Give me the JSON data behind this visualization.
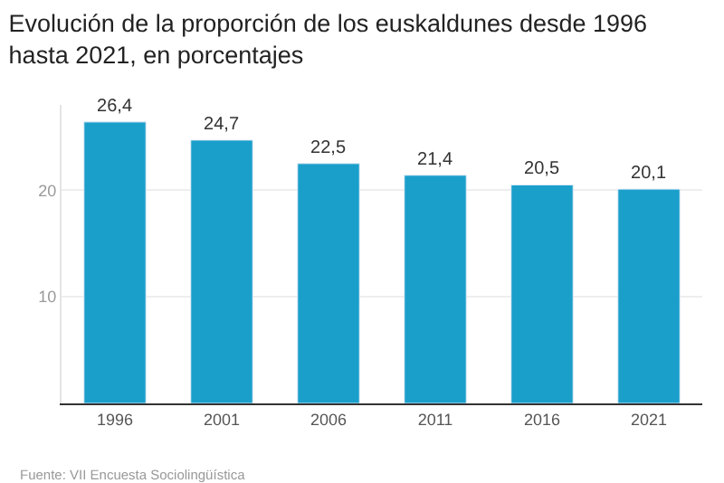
{
  "chart_data": {
    "type": "bar",
    "title": "Evolución de la proporción de los euskaldunes desde 1996\nhasta 2021, en porcentajes",
    "categories": [
      "1996",
      "2001",
      "2006",
      "2011",
      "2016",
      "2021"
    ],
    "values": [
      26.4,
      24.7,
      22.5,
      21.4,
      20.5,
      20.1
    ],
    "value_labels": [
      "26,4",
      "24,7",
      "22,5",
      "21,4",
      "20,5",
      "20,1"
    ],
    "color": "#1a9fcb",
    "ylim": [
      0,
      28
    ],
    "yticks": [
      {
        "value": 0,
        "label": null
      },
      10,
      20
    ],
    "grid": "y",
    "annotations": [
      "Fuente: VII Encuesta Sociolingüística"
    ]
  }
}
